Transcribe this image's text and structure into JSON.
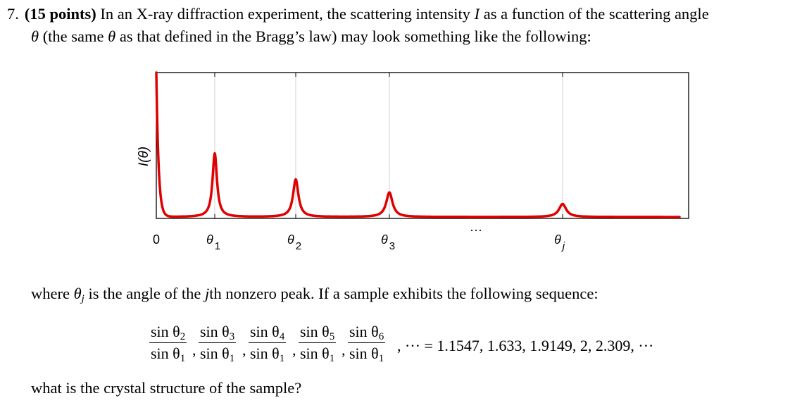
{
  "question": {
    "number": "7.",
    "points": "(15 points)",
    "line1_text": "In an X-ray diffraction experiment, the scattering intensity",
    "intensity_symbol": "I",
    "line1_tail": "as a function of the scattering angle",
    "theta": "θ",
    "line2_text": "(the same",
    "line2_tail": "as that defined in the Bragg’s law) may look something like the following:",
    "where_pre": "where",
    "theta_j": "θ",
    "j_sub": "j",
    "where_mid": "is the angle of the",
    "jth": "j",
    "where_tail": "th nonzero peak. If a sample exhibits the following sequence:",
    "final": "what is the crystal structure of the sample?"
  },
  "sequence": {
    "fractions": [
      {
        "num": "sin θ",
        "num_sub": "2",
        "den": "sin θ",
        "den_sub": "1"
      },
      {
        "num": "sin θ",
        "num_sub": "3",
        "den": "sin θ",
        "den_sub": "1"
      },
      {
        "num": "sin θ",
        "num_sub": "4",
        "den": "sin θ",
        "den_sub": "1"
      },
      {
        "num": "sin θ",
        "num_sub": "5",
        "den": "sin θ",
        "den_sub": "1"
      },
      {
        "num": "sin θ",
        "num_sub": "6",
        "den": "sin θ",
        "den_sub": "1"
      }
    ],
    "tail": ", ··· = 1.1547, 1.633, 1.9149, 2, 2.309, ···"
  },
  "chart_data": {
    "type": "line",
    "ylabel": "I(θ)",
    "x_ticks": [
      {
        "label": "0",
        "sub": ""
      },
      {
        "label": "θ",
        "sub": "1"
      },
      {
        "label": "θ",
        "sub": "2"
      },
      {
        "label": "θ",
        "sub": "3"
      },
      {
        "label": "θ",
        "sub": "j"
      }
    ],
    "ellipsis": "···",
    "peaks": [
      {
        "tick": 1,
        "height": 0.44
      },
      {
        "tick": 2,
        "height": 0.26
      },
      {
        "tick": 3,
        "height": 0.17
      },
      {
        "tick": 4,
        "height": 0.09
      }
    ],
    "grid": "vertical at peak positions",
    "colors": {
      "curve": "#e00000",
      "grid": "#d0d0d0",
      "axes": "#000000"
    }
  }
}
